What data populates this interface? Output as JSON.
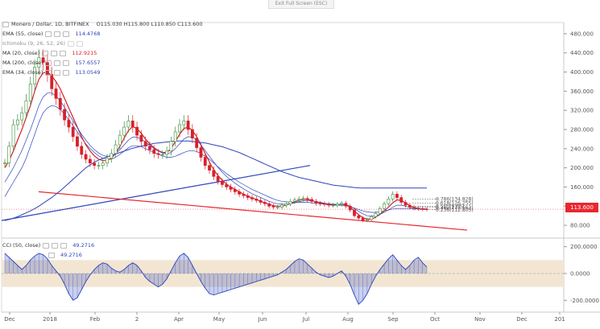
{
  "exit_fullscreen_label": "Exit Full Screen (ESC)",
  "header": {
    "symbol": "Monero / Dollar, 1D, BITFINEX",
    "ohlc": "O115.030 H115.800 L110.850 C113.600"
  },
  "indicators": [
    {
      "label": "EMA (55, close)",
      "value": "114.4768",
      "color": "#2c44bb"
    },
    {
      "label": "Ichimoku (9, 26, 52, 26)",
      "value": "",
      "color": "#9aa3b0"
    },
    {
      "label": "MA (20, close)",
      "value": "112.9215",
      "color": "#d8202a"
    },
    {
      "label": "MA (200, close)",
      "value": "157.6557",
      "color": "#2c44bb"
    },
    {
      "label": "EMA (34, close)",
      "value": "113.0549",
      "color": "#2c44bb"
    }
  ],
  "current_price": "113.600",
  "oscillator": {
    "label": "CCI (50, close)",
    "value1": "49.2716",
    "value2": "49.2716"
  },
  "colors": {
    "up": "#3a8d3a",
    "down": "#d8202a",
    "blue": "#2c44bb",
    "red": "#e8272e",
    "band": "#f2e6d3"
  },
  "chart_data": {
    "type": "line",
    "title": "Monero / Dollar, 1D, BITFINEX",
    "ylim": [
      60,
      500
    ],
    "y_ticks": [
      "480.000",
      "440.000",
      "400.000",
      "360.000",
      "320.000",
      "280.000",
      "240.000",
      "200.000",
      "160.000",
      "120.000",
      "80.000"
    ],
    "x_ticks": [
      "Dec",
      "2018",
      "Feb",
      "2",
      "Apr",
      "May",
      "Jun",
      "Jul",
      "Aug",
      "Sep",
      "Oct",
      "Nov",
      "Dec",
      "201"
    ],
    "price": [
      210,
      245,
      290,
      300,
      315,
      340,
      375,
      410,
      430,
      420,
      395,
      365,
      345,
      322,
      300,
      285,
      265,
      245,
      228,
      218,
      210,
      205,
      205,
      210,
      220,
      230,
      248,
      268,
      285,
      298,
      285,
      268,
      255,
      245,
      238,
      230,
      228,
      228,
      235,
      255,
      275,
      290,
      298,
      280,
      262,
      242,
      222,
      205,
      195,
      182,
      172,
      165,
      160,
      155,
      150,
      145,
      142,
      138,
      135,
      132,
      128,
      125,
      120,
      118,
      118,
      122,
      125,
      130,
      133,
      135,
      136,
      134,
      130,
      126,
      125,
      124,
      122,
      122,
      124,
      126,
      120,
      112,
      100,
      95,
      90,
      92,
      98,
      105,
      115,
      125,
      135,
      145,
      138,
      128,
      122,
      118,
      116,
      115,
      114,
      113.6
    ],
    "indicator_series": [
      {
        "name": "EMA (55, close)",
        "values": [
          140,
          155,
          170,
          185,
          200,
          220,
          245,
          270,
          295,
          315,
          325,
          330,
          328,
          322,
          312,
          300,
          288,
          275,
          262,
          250,
          240,
          232,
          225,
          220,
          218,
          218,
          222,
          228,
          235,
          242,
          246,
          246,
          244,
          240,
          236,
          232,
          228,
          225,
          222,
          222,
          224,
          228,
          232,
          235,
          236,
          234,
          230,
          224,
          218,
          210,
          202,
          195,
          188,
          182,
          176,
          170,
          165,
          160,
          155,
          151,
          147,
          143,
          139,
          135,
          132,
          130,
          129,
          128,
          128,
          128,
          128,
          128,
          127,
          126,
          125,
          124,
          123,
          122,
          122,
          122,
          121,
          119,
          116,
          113,
          110,
          108,
          107,
          107,
          108,
          110,
          112,
          114,
          115,
          115,
          115,
          115,
          115,
          114.5,
          114.5,
          114.48
        ]
      },
      {
        "name": "MA (20, close)",
        "values": [
          200,
          215,
          235,
          258,
          280,
          305,
          330,
          360,
          385,
          398,
          400,
          392,
          380,
          365,
          345,
          325,
          305,
          285,
          265,
          248,
          235,
          225,
          218,
          215,
          215,
          220,
          230,
          245,
          262,
          278,
          286,
          282,
          272,
          260,
          250,
          242,
          236,
          232,
          232,
          240,
          255,
          270,
          282,
          285,
          278,
          265,
          248,
          230,
          212,
          196,
          184,
          174,
          166,
          160,
          155,
          150,
          145,
          141,
          137,
          134,
          130,
          127,
          124,
          121,
          120,
          120,
          122,
          126,
          129,
          132,
          134,
          134,
          132,
          129,
          127,
          125,
          124,
          123,
          123,
          124,
          123,
          118,
          110,
          102,
          96,
          93,
          93,
          97,
          103,
          110,
          118,
          127,
          133,
          132,
          127,
          121,
          117,
          115,
          113.5,
          112.92
        ]
      },
      {
        "name": "MA (200, close)",
        "values": [
          90,
          92,
          95,
          98,
          102,
          106,
          110,
          115,
          120,
          126,
          132,
          138,
          145,
          152,
          160,
          168,
          176,
          184,
          192,
          200,
          206,
          212,
          216,
          220,
          223,
          226,
          229,
          232,
          235,
          238,
          241,
          243,
          245,
          247,
          249,
          251,
          252,
          253,
          254,
          255,
          256,
          256,
          256,
          256,
          255,
          254,
          253,
          252,
          250,
          248,
          246,
          244,
          241,
          238,
          235,
          232,
          228,
          224,
          220,
          216,
          212,
          208,
          204,
          200,
          196,
          192,
          189,
          186,
          183,
          180,
          178,
          176,
          174,
          172,
          170,
          168,
          166,
          164,
          163,
          162,
          161,
          160,
          159,
          158,
          157.9,
          157.8,
          157.7,
          157.7,
          157.7,
          157.7,
          157.7,
          157.7,
          157.7,
          157.7,
          157.7,
          157.7,
          157.7,
          157.66,
          157.66,
          157.66
        ]
      },
      {
        "name": "EMA (34, close)",
        "values": [
          170,
          185,
          200,
          218,
          236,
          258,
          280,
          305,
          330,
          348,
          356,
          356,
          350,
          340,
          326,
          312,
          298,
          284,
          270,
          258,
          247,
          238,
          231,
          226,
          224,
          225,
          230,
          238,
          248,
          258,
          264,
          264,
          260,
          254,
          247,
          240,
          235,
          231,
          229,
          232,
          240,
          250,
          260,
          265,
          264,
          258,
          248,
          236,
          224,
          212,
          201,
          191,
          182,
          175,
          168,
          162,
          156,
          151,
          146,
          142,
          138,
          134,
          130,
          127,
          125,
          124,
          124,
          125,
          127,
          129,
          131,
          132,
          131,
          129,
          128,
          126,
          125,
          124,
          124,
          124,
          123,
          120,
          115,
          109,
          104,
          100,
          99,
          100,
          103,
          107,
          112,
          118,
          122,
          122,
          120,
          117,
          115,
          114,
          113.5,
          113.05
        ]
      }
    ],
    "trendlines": [
      {
        "from": [
          "Dec",
          90
        ],
        "to": [
          "Jul",
          205
        ],
        "color": "#2c44bb"
      },
      {
        "from": [
          "Dec",
          150
        ],
        "to": [
          "Nov",
          70
        ],
        "color": "#e8272e"
      }
    ],
    "fib_levels": [
      {
        "label": "0.786(134.828)",
        "value": 134.828
      },
      {
        "label": "0.618(126.255)",
        "value": 126.255
      },
      {
        "label": "0.5(119.65)",
        "value": 119.65
      },
      {
        "label": "0.382(117.663)",
        "value": 117.663
      },
      {
        "label": "0.236(112.805)",
        "value": 112.805
      }
    ],
    "oscillator_ticks": [
      "200.0000",
      "0.0000",
      "-200.0000"
    ],
    "oscillator_ylim": [
      -240,
      240
    ],
    "cci": [
      150,
      120,
      90,
      60,
      30,
      60,
      100,
      130,
      150,
      140,
      110,
      60,
      20,
      -20,
      -80,
      -150,
      -200,
      -180,
      -120,
      -60,
      -10,
      30,
      60,
      80,
      70,
      40,
      20,
      10,
      30,
      60,
      80,
      60,
      20,
      -30,
      -60,
      -80,
      -100,
      -80,
      -40,
      20,
      80,
      130,
      150,
      120,
      60,
      0,
      -60,
      -110,
      -150,
      -160,
      -150,
      -140,
      -130,
      -120,
      -110,
      -100,
      -90,
      -80,
      -70,
      -60,
      -50,
      -40,
      -30,
      -20,
      -10,
      10,
      30,
      60,
      90,
      110,
      100,
      70,
      40,
      10,
      -10,
      -20,
      -30,
      -20,
      0,
      20,
      -20,
      -80,
      -160,
      -230,
      -200,
      -150,
      -80,
      -20,
      30,
      70,
      110,
      140,
      100,
      60,
      30,
      60,
      100,
      120,
      80,
      49.27
    ]
  }
}
